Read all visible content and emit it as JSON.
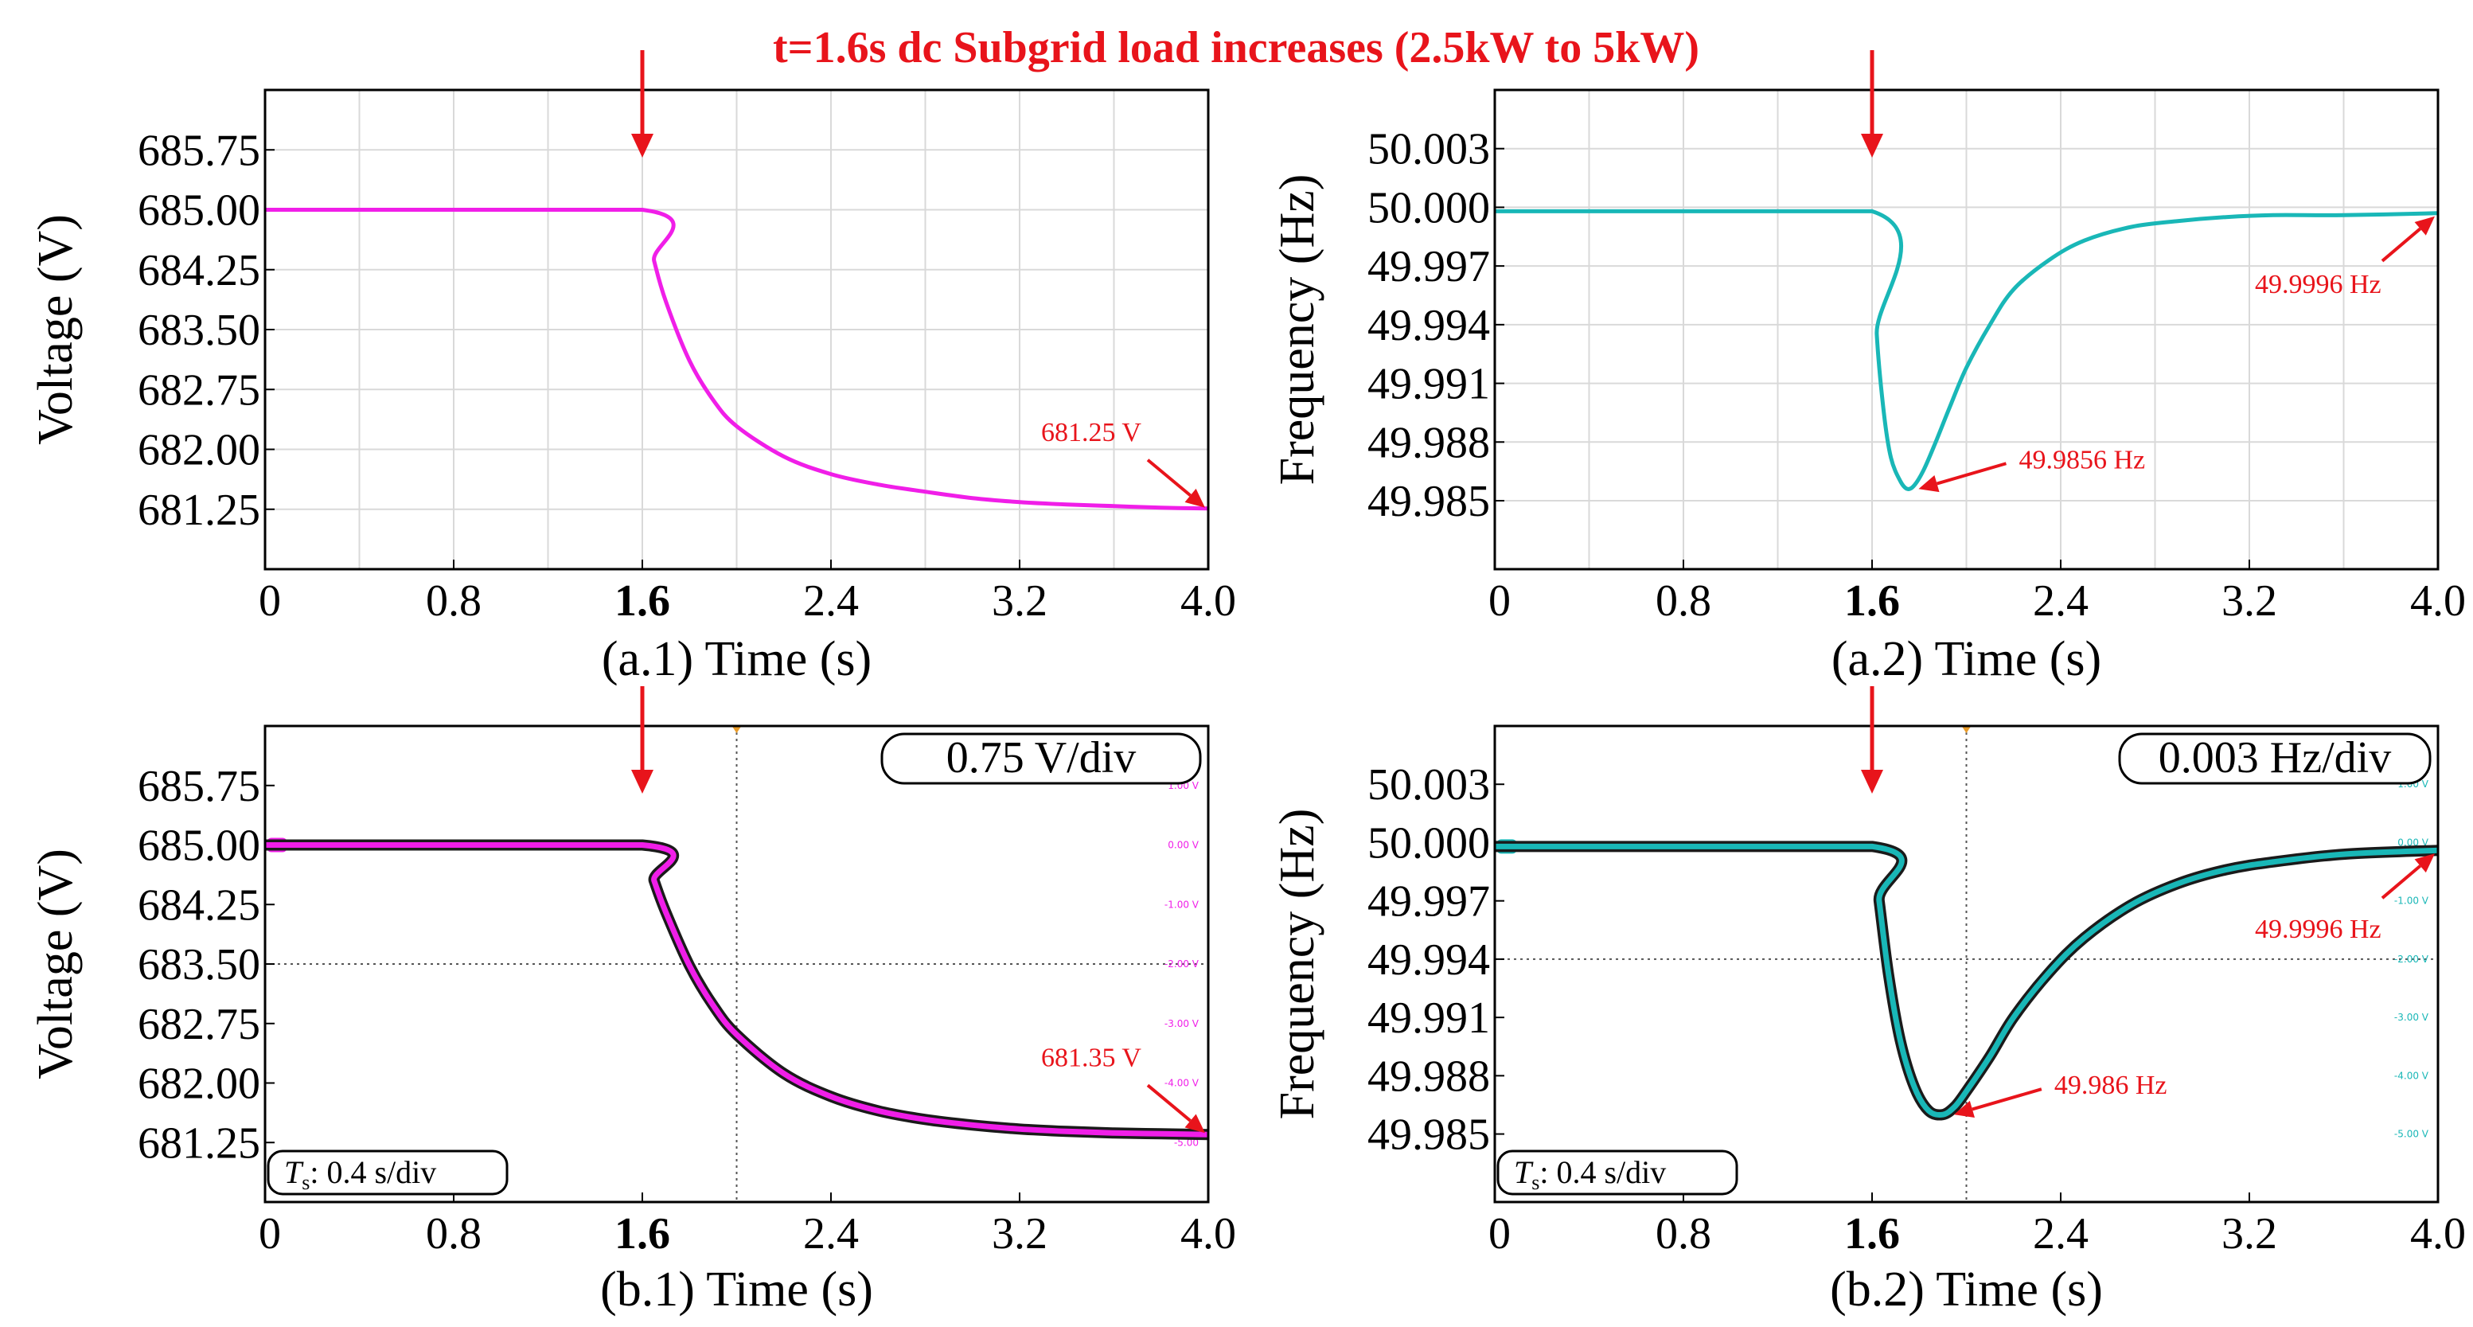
{
  "figure": {
    "title": "t=1.6s dc Subgrid load increases (2.5kW to 5kW)"
  },
  "colors": {
    "title_red": "#e8141b",
    "voltage_trace": "#f01ee8",
    "frequency_trace": "#19b7b7",
    "frame": "#000000",
    "grid": "#d9d9d9"
  },
  "chart_data": [
    {
      "id": "a1",
      "type": "line",
      "panel_label": "(a.1) Time (s)",
      "xlabel": "Time (s)",
      "ylabel": "Voltage (V)",
      "xlim": [
        0,
        4.0
      ],
      "ylim": [
        680.5,
        686.5
      ],
      "xticks": [
        "0",
        "0.8",
        "1.6",
        "2.4",
        "3.2",
        "4.0"
      ],
      "xtick_values": [
        0,
        0.8,
        1.6,
        2.4,
        3.2,
        4.0
      ],
      "bold_xtick": "1.6",
      "yticks": [
        "681.25",
        "682.00",
        "682.75",
        "683.50",
        "684.25",
        "685.00",
        "685.75"
      ],
      "ytick_values": [
        681.25,
        682.0,
        682.75,
        683.5,
        684.25,
        685.0,
        685.75
      ],
      "grid": true,
      "series": [
        {
          "x": [
            0,
            1.6,
            1.65,
            1.7,
            1.8,
            1.9,
            2.0,
            2.2,
            2.4,
            2.6,
            2.8,
            3.0,
            3.2,
            3.4,
            3.6,
            3.8,
            4.0
          ],
          "values": [
            685.0,
            685.0,
            684.36,
            683.85,
            683.11,
            682.62,
            682.29,
            681.91,
            681.69,
            681.56,
            681.47,
            681.39,
            681.34,
            681.31,
            681.29,
            681.27,
            681.26
          ]
        }
      ],
      "event_x": 1.6,
      "annotation": {
        "text": "681.25 V",
        "x": 4.0,
        "y": 681.25
      }
    },
    {
      "id": "a2",
      "type": "line",
      "panel_label": "(a.2) Time (s)",
      "xlabel": "Time (s)",
      "ylabel": "Frequency (Hz)",
      "xlim": [
        0,
        4.0
      ],
      "ylim": [
        49.9815,
        50.006
      ],
      "xticks": [
        "0",
        "0.8",
        "1.6",
        "2.4",
        "3.2",
        "4.0"
      ],
      "xtick_values": [
        0,
        0.8,
        1.6,
        2.4,
        3.2,
        4.0
      ],
      "bold_xtick": "1.6",
      "yticks": [
        "49.985",
        "49.988",
        "49.991",
        "49.994",
        "49.997",
        "50.000",
        "50.003"
      ],
      "ytick_values": [
        49.985,
        49.988,
        49.991,
        49.994,
        49.997,
        50.0,
        50.003
      ],
      "grid": true,
      "series": [
        {
          "x": [
            0,
            1.6,
            1.62,
            1.65,
            1.68,
            1.72,
            1.75,
            1.78,
            1.82,
            1.87,
            1.93,
            2.0,
            2.1,
            2.2,
            2.35,
            2.5,
            2.7,
            2.9,
            3.1,
            3.3,
            3.6,
            4.0
          ],
          "values": [
            49.9998,
            49.9998,
            49.9935,
            49.9895,
            49.9872,
            49.986,
            49.9856,
            49.9858,
            49.9866,
            49.988,
            49.9898,
            49.9918,
            49.994,
            49.9958,
            49.9973,
            49.9983,
            49.999,
            49.9993,
            49.9995,
            49.9996,
            49.9996,
            49.9997
          ]
        }
      ],
      "event_x": 1.6,
      "annotations": [
        {
          "text": "49.9856 Hz",
          "x": 1.75,
          "y": 49.9856
        },
        {
          "text": "49.9996 Hz",
          "x": 4.0,
          "y": 49.9997
        }
      ]
    },
    {
      "id": "b1",
      "type": "line",
      "panel_label": "(b.1) Time (s)",
      "xlabel": "Time (s)",
      "ylabel": "Voltage (V)",
      "xlim": [
        0,
        4.0
      ],
      "ylim": [
        680.5,
        686.5
      ],
      "xticks": [
        "0",
        "0.8",
        "1.6",
        "2.4",
        "3.2",
        "4.0"
      ],
      "xtick_values": [
        0,
        0.8,
        1.6,
        2.4,
        3.2,
        4.0
      ],
      "bold_xtick": "1.6",
      "yticks": [
        "681.25",
        "682.00",
        "682.75",
        "683.50",
        "684.25",
        "685.00",
        "685.75"
      ],
      "ytick_values": [
        681.25,
        682.0,
        682.75,
        683.5,
        684.25,
        685.0,
        685.75
      ],
      "grid": false,
      "division_label": "0.75 V/div",
      "time_base": {
        "prefix": "T",
        "sub": "s",
        "text": ": 0.4 s/div"
      },
      "scope_ticks": [
        "1.00 V",
        "0.00 V",
        "-1.00 V",
        "-2.00 V",
        "-3.00 V",
        "-4.00 V",
        "-5.00"
      ],
      "series": [
        {
          "x": [
            0,
            1.6,
            1.65,
            1.7,
            1.8,
            1.9,
            2.0,
            2.2,
            2.4,
            2.6,
            2.8,
            3.0,
            3.2,
            3.4,
            3.6,
            3.8,
            4.0
          ],
          "values": [
            685.0,
            685.0,
            684.55,
            684.15,
            683.48,
            682.98,
            682.61,
            682.12,
            681.83,
            681.65,
            681.54,
            681.47,
            681.42,
            681.39,
            681.37,
            681.36,
            681.35
          ]
        }
      ],
      "event_x": 1.6,
      "annotation": {
        "text": "681.35 V",
        "x": 4.0,
        "y": 681.35
      }
    },
    {
      "id": "b2",
      "type": "line",
      "panel_label": "(b.2) Time (s)",
      "xlabel": "Time (s)",
      "ylabel": "Frequency (Hz)",
      "xlim": [
        0,
        4.0
      ],
      "ylim": [
        49.9815,
        50.006
      ],
      "xticks": [
        "0",
        "0.8",
        "1.6",
        "2.4",
        "3.2",
        "4.0"
      ],
      "xtick_values": [
        0,
        0.8,
        1.6,
        2.4,
        3.2,
        4.0
      ],
      "bold_xtick": "1.6",
      "yticks": [
        "49.985",
        "49.988",
        "49.991",
        "49.994",
        "49.997",
        "50.000",
        "50.003"
      ],
      "ytick_values": [
        49.985,
        49.988,
        49.991,
        49.994,
        49.997,
        50.0,
        50.003
      ],
      "grid": false,
      "division_label": "0.003 Hz/div",
      "time_base": {
        "prefix": "T",
        "sub": "s",
        "text": ": 0.4 s/div"
      },
      "scope_ticks": [
        "1.00 V",
        "0.00 V",
        "-1.00 V",
        "-2.00 V",
        "-3.00 V",
        "-4.00 V",
        "-5.00 V"
      ],
      "series": [
        {
          "x": [
            0,
            1.6,
            1.63,
            1.67,
            1.72,
            1.78,
            1.84,
            1.9,
            1.95,
            2.0,
            2.1,
            2.2,
            2.35,
            2.5,
            2.7,
            2.9,
            3.1,
            3.3,
            3.6,
            4.0
          ],
          "values": [
            49.9998,
            49.9998,
            49.997,
            49.9932,
            49.9898,
            49.9874,
            49.9862,
            49.986,
            49.9864,
            49.9872,
            49.989,
            49.991,
            49.9933,
            49.9951,
            49.9968,
            49.9979,
            49.9986,
            49.999,
            49.9994,
            49.9996
          ]
        }
      ],
      "event_x": 1.6,
      "annotations": [
        {
          "text": "49.986 Hz",
          "x": 1.9,
          "y": 49.986
        },
        {
          "text": "49.9996 Hz",
          "x": 4.0,
          "y": 49.9996
        }
      ]
    }
  ]
}
